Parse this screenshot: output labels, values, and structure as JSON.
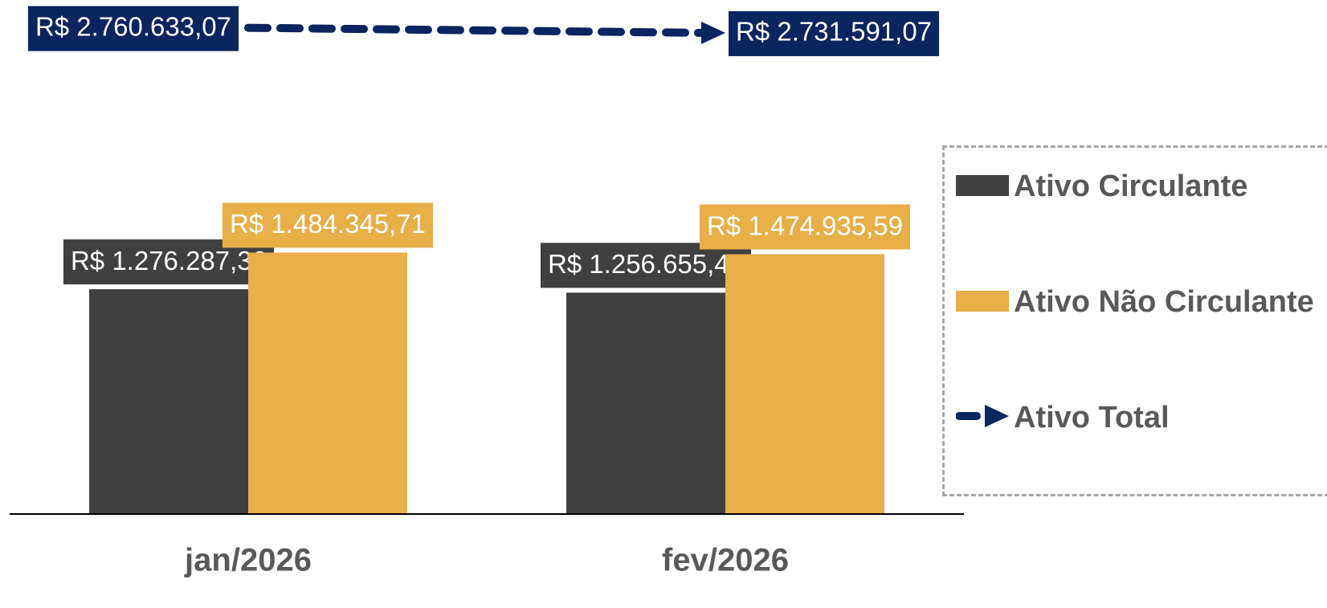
{
  "chart_data": {
    "type": "bar",
    "categories": [
      "jan/2026",
      "fev/2026"
    ],
    "series": [
      {
        "name": "Ativo Circulante",
        "color": "#404040",
        "values": [
          1276287.36,
          1256655.48
        ],
        "value_labels": [
          "R$ 1.276.287,36",
          "R$ 1.256.655,48"
        ]
      },
      {
        "name": "Ativo Não Circulante",
        "color": "#e8ae47",
        "values": [
          1484345.71,
          1474935.59
        ],
        "value_labels": [
          "R$ 1.484.345,71",
          "R$ 1.474.935,59"
        ]
      },
      {
        "name": "Ativo Total",
        "type": "line",
        "color": "#0b2561",
        "values": [
          2760633.07,
          2731591.07
        ],
        "value_labels": [
          "R$ 2.760.633,07",
          "R$ 2.731.591,07"
        ]
      }
    ],
    "ylim": [
      0,
      2900000
    ],
    "legend": "right"
  }
}
